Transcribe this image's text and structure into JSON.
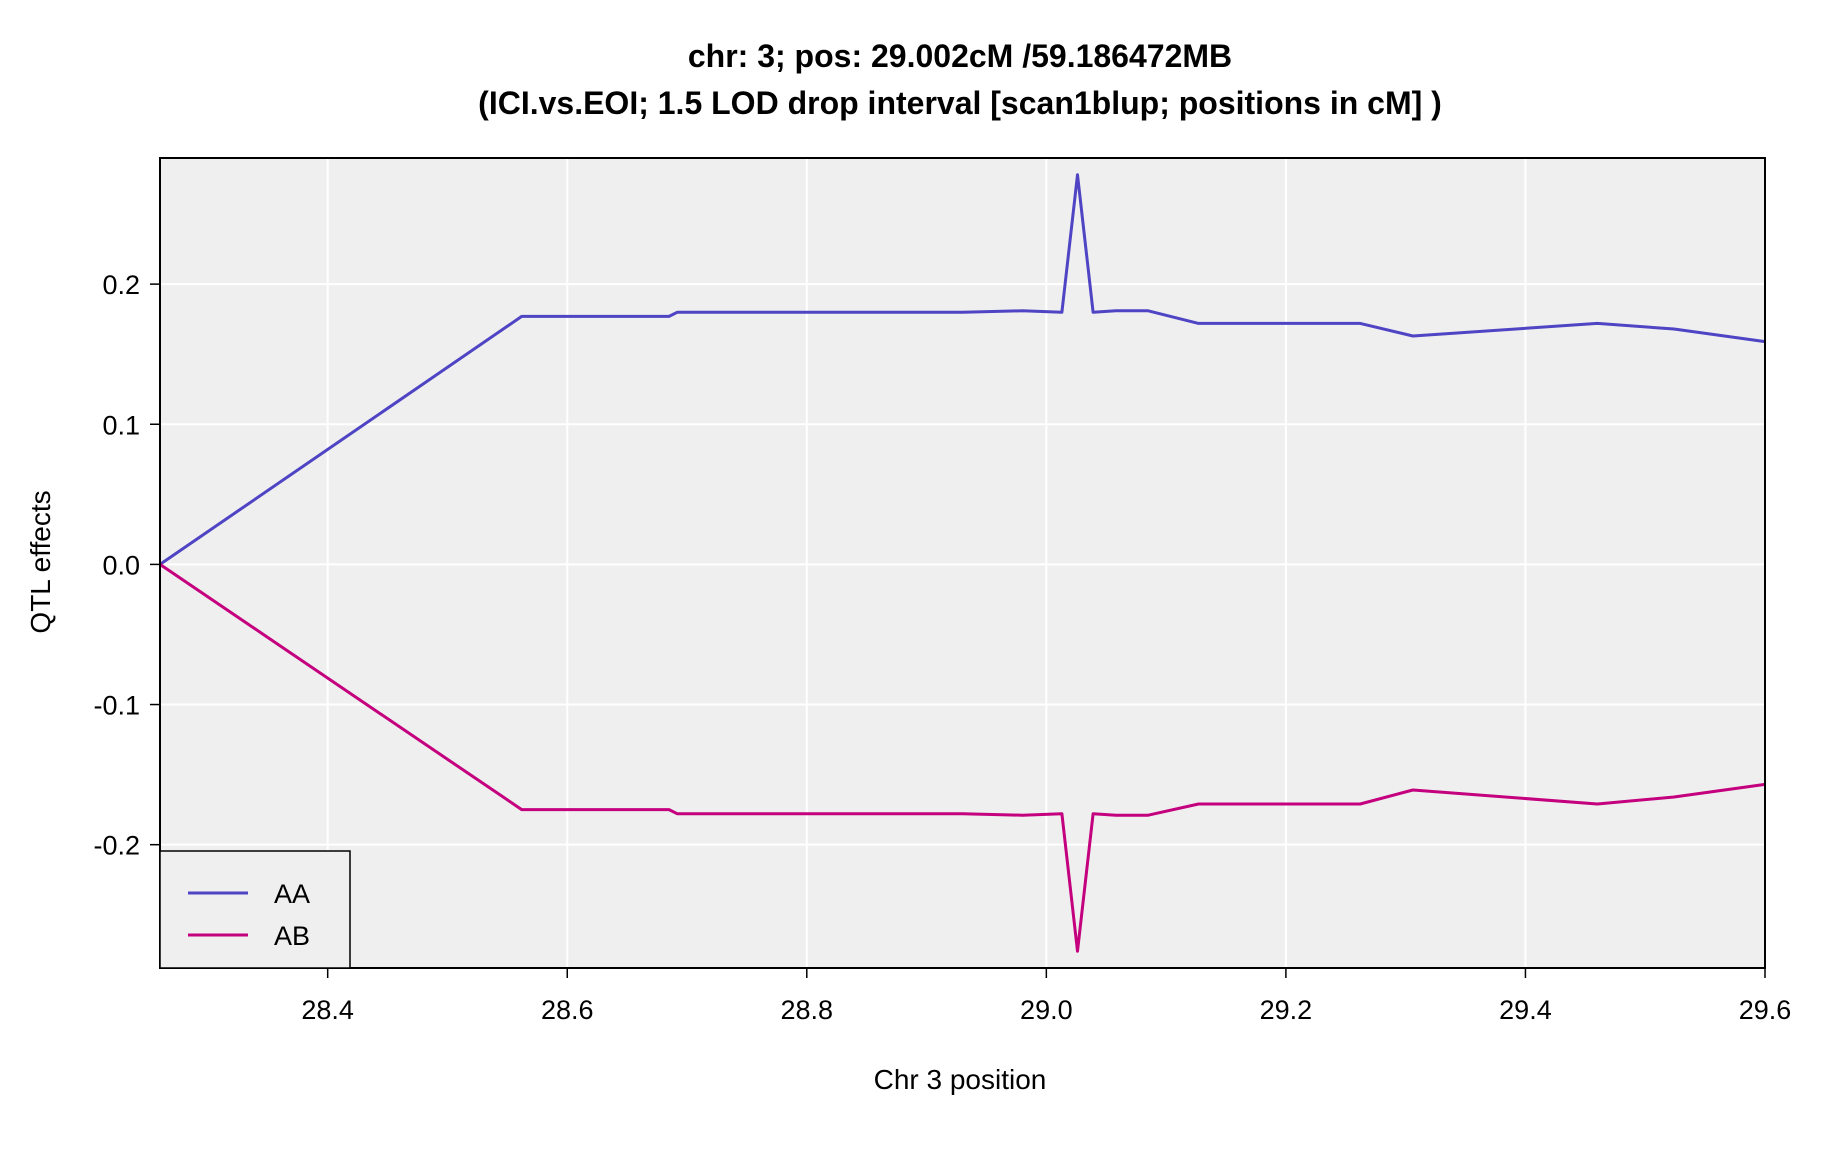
{
  "chart_data": {
    "type": "line",
    "title": "chr: 3; pos: 29.002cM /59.186472MB",
    "subtitle": "(ICI.vs.EOI; 1.5 LOD drop interval [scan1blup; positions in cM] )",
    "xlabel": "Chr 3 position",
    "ylabel": "QTL effects",
    "xlim": [
      28.26,
      29.6
    ],
    "ylim": [
      -0.288,
      0.29
    ],
    "xticks": [
      28.4,
      28.6,
      28.8,
      29.0,
      29.2,
      29.4,
      29.6
    ],
    "xtick_labels": [
      "28.4",
      "28.6",
      "28.8",
      "29.0",
      "29.2",
      "29.4",
      "29.6"
    ],
    "yticks": [
      -0.2,
      -0.1,
      0.0,
      0.1,
      0.2
    ],
    "ytick_labels": [
      "-0.2",
      "-0.1",
      "0.0",
      "0.1",
      "0.2"
    ],
    "grid": true,
    "legend_position": "bottom-left",
    "series": [
      {
        "name": "AA",
        "color": "#4f44c4",
        "x": [
          28.26,
          28.562,
          28.685,
          28.692,
          28.93,
          28.98,
          29.013,
          29.026,
          29.039,
          29.058,
          29.085,
          29.127,
          29.262,
          29.306,
          29.46,
          29.524,
          29.6
        ],
        "y": [
          0.0,
          0.177,
          0.177,
          0.18,
          0.18,
          0.181,
          0.18,
          0.278,
          0.18,
          0.181,
          0.181,
          0.172,
          0.172,
          0.163,
          0.172,
          0.168,
          0.159
        ]
      },
      {
        "name": "AB",
        "color": "#c4007e",
        "x": [
          28.26,
          28.562,
          28.685,
          28.692,
          28.93,
          28.98,
          29.013,
          29.026,
          29.039,
          29.058,
          29.085,
          29.127,
          29.262,
          29.306,
          29.46,
          29.524,
          29.6
        ],
        "y": [
          0.0,
          -0.175,
          -0.175,
          -0.178,
          -0.178,
          -0.179,
          -0.178,
          -0.276,
          -0.178,
          -0.179,
          -0.179,
          -0.171,
          -0.171,
          -0.161,
          -0.171,
          -0.166,
          -0.157
        ]
      }
    ]
  }
}
